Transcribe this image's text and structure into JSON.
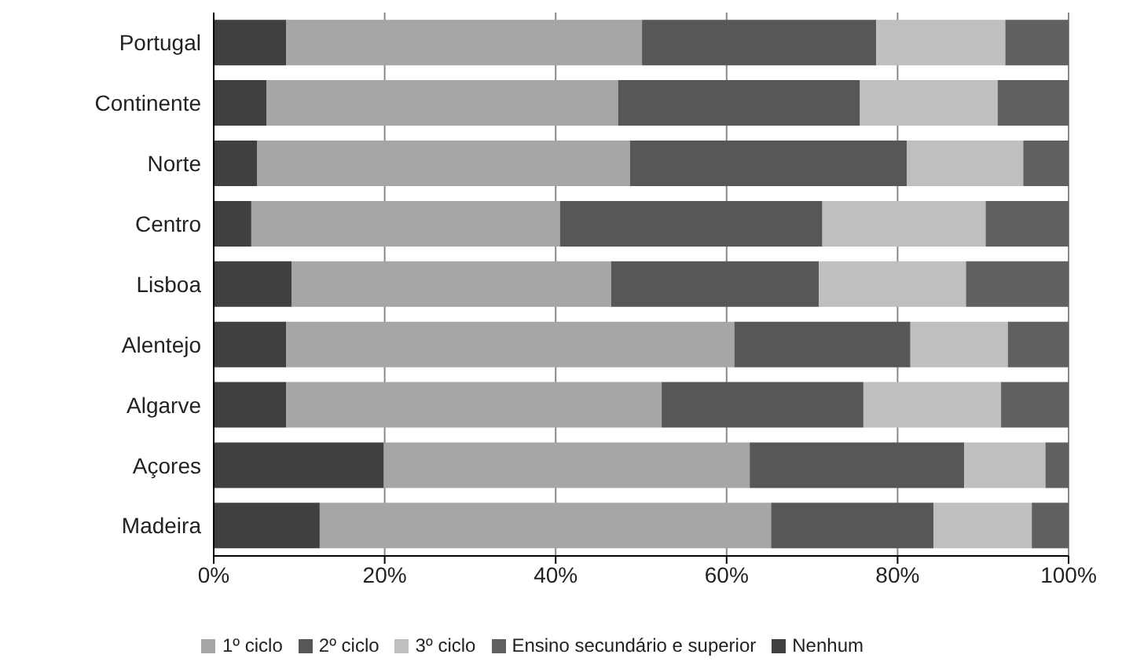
{
  "chart_data": {
    "type": "bar",
    "orientation": "horizontal",
    "stacked": true,
    "categories": [
      "Portugal",
      "Continente",
      "Norte",
      "Centro",
      "Lisboa",
      "Alentejo",
      "Algarve",
      "Açores",
      "Madeira"
    ],
    "series": [
      {
        "name": "Nenhum",
        "color": "#404040",
        "values": [
          8.5,
          6.2,
          5.1,
          4.4,
          9.1,
          8.5,
          8.5,
          19.9,
          12.4
        ]
      },
      {
        "name": "1º ciclo",
        "color": "#a6a6a6",
        "values": [
          41.6,
          41.1,
          43.6,
          36.1,
          37.4,
          52.4,
          43.9,
          42.8,
          52.8
        ]
      },
      {
        "name": "2º ciclo",
        "color": "#575757",
        "values": [
          27.4,
          28.3,
          32.4,
          30.7,
          24.3,
          20.6,
          23.6,
          25.1,
          19.0
        ]
      },
      {
        "name": "3º ciclo",
        "color": "#bfbfbf",
        "values": [
          15.1,
          16.1,
          13.6,
          19.1,
          17.2,
          11.4,
          16.1,
          9.5,
          11.5
        ]
      },
      {
        "name": "Ensino secundário e superior",
        "color": "#606060",
        "values": [
          7.4,
          8.3,
          5.3,
          9.7,
          12.0,
          7.1,
          7.9,
          2.7,
          4.3
        ]
      }
    ],
    "xlim": [
      0,
      100
    ],
    "xticks": [
      {
        "value": 0,
        "label": "0%"
      },
      {
        "value": 20,
        "label": "20%"
      },
      {
        "value": 40,
        "label": "40%"
      },
      {
        "value": 60,
        "label": "60%"
      },
      {
        "value": 80,
        "label": "80%"
      },
      {
        "value": 100,
        "label": "100%"
      }
    ],
    "grid": "x",
    "legend": "bottom"
  }
}
